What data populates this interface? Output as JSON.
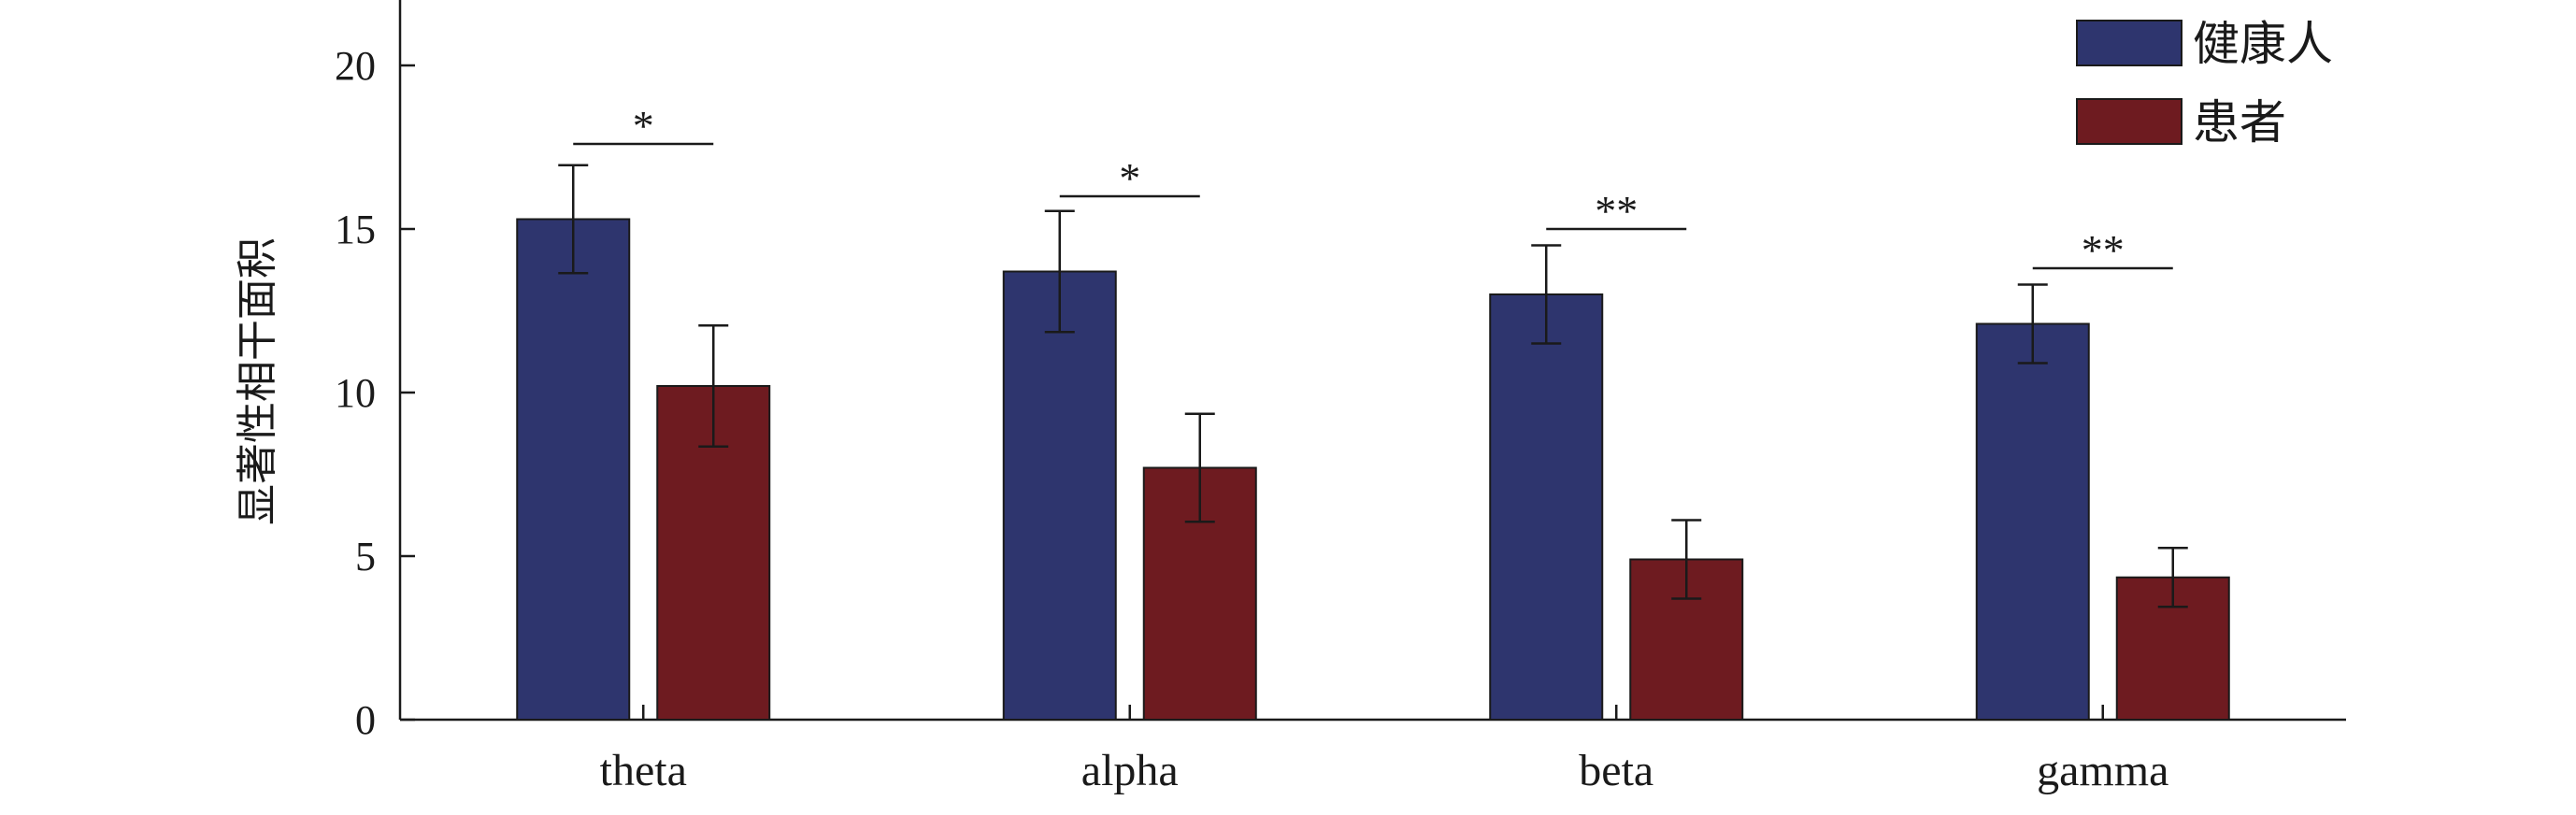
{
  "chart_data": {
    "type": "bar",
    "categories": [
      "theta",
      "alpha",
      "beta",
      "gamma"
    ],
    "series": [
      {
        "name": "健康人",
        "color": "#2e356e",
        "values": [
          15.3,
          13.7,
          13.0,
          12.1
        ],
        "errors": [
          1.65,
          1.85,
          1.5,
          1.2
        ]
      },
      {
        "name": "患者",
        "color": "#6e1b20",
        "values": [
          10.2,
          7.7,
          4.9,
          4.35
        ],
        "errors": [
          1.85,
          1.65,
          1.2,
          0.9
        ]
      }
    ],
    "significance": [
      "*",
      "*",
      "**",
      "**"
    ],
    "significance_bracket_levels": [
      17.6,
      16.0,
      15.0,
      13.8
    ],
    "ylabel": "显著性相干面积",
    "xlabel": "",
    "ylim": [
      0,
      22
    ],
    "yticks": [
      0,
      5,
      10,
      15,
      20
    ],
    "grid": false,
    "legend_position": "top-right"
  }
}
